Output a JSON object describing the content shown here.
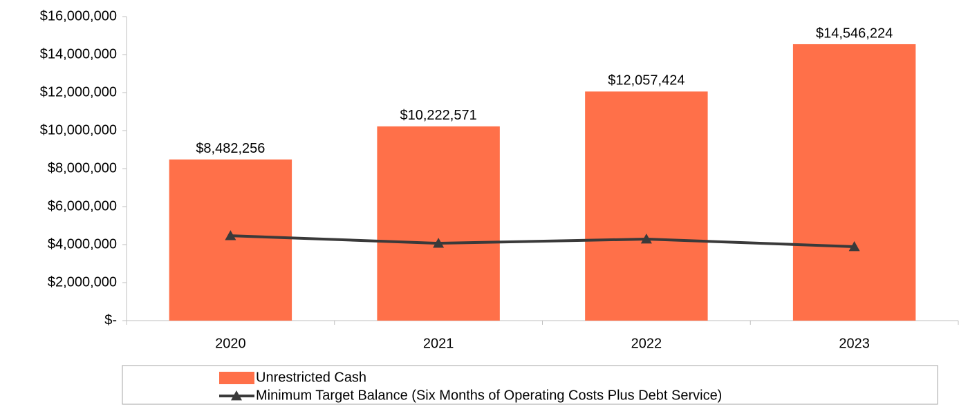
{
  "chart_data": {
    "type": "bar",
    "categories": [
      "2020",
      "2021",
      "2022",
      "2023"
    ],
    "series": [
      {
        "name": "Unrestricted Cash",
        "type": "bar",
        "color": "#ff7049",
        "values": [
          8482256,
          10222571,
          12057424,
          14546224
        ],
        "value_labels": [
          "$8,482,256",
          "$10,222,571",
          "$12,057,424",
          "$14,546,224"
        ]
      },
      {
        "name": "Minimum Target Balance (Six Months of Operating Costs Plus Debt Service)",
        "type": "line",
        "color": "#3a3a3a",
        "values": [
          4470000,
          4070000,
          4290000,
          3890000
        ]
      }
    ],
    "ylim": [
      0,
      16000000
    ],
    "yticks": [
      {
        "value": 0,
        "label": "$-"
      },
      {
        "value": 2000000,
        "label": "$2,000,000"
      },
      {
        "value": 4000000,
        "label": "$4,000,000"
      },
      {
        "value": 6000000,
        "label": "$6,000,000"
      },
      {
        "value": 8000000,
        "label": "$8,000,000"
      },
      {
        "value": 10000000,
        "label": "$10,000,000"
      },
      {
        "value": 12000000,
        "label": "$12,000,000"
      },
      {
        "value": 14000000,
        "label": "$14,000,000"
      },
      {
        "value": 16000000,
        "label": "$16,000,000"
      }
    ],
    "grid": false,
    "legend": "bottom"
  }
}
